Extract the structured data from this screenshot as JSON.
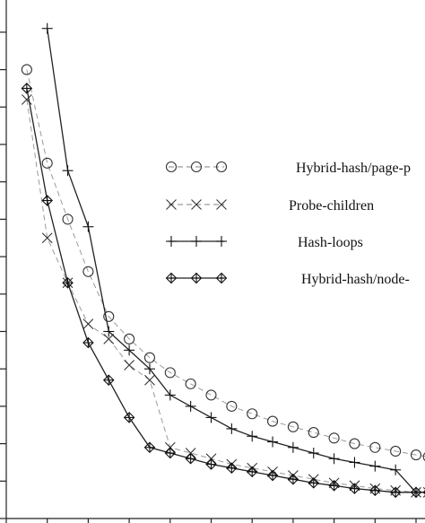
{
  "chart_data": {
    "type": "line",
    "title": "",
    "xlabel": "",
    "ylabel": "",
    "x_ticks": [
      0,
      1,
      2,
      3,
      4,
      5,
      6,
      7,
      8,
      9,
      10
    ],
    "y_ticks": [
      0,
      1,
      2,
      3,
      4,
      5,
      6,
      7,
      8,
      9,
      10,
      11,
      12,
      13
    ],
    "xlim": [
      0,
      10.3
    ],
    "ylim": [
      0,
      14
    ],
    "grid": false,
    "legend_placement": "right",
    "series": [
      {
        "name": "Hybrid-hash/page-p",
        "marker": "circle",
        "line": "dashed",
        "color": "#9a9a9a",
        "x": [
          0.5,
          1,
          1.5,
          2,
          2.5,
          3,
          3.5,
          4,
          4.5,
          5,
          5.5,
          6,
          6.5,
          7,
          7.5,
          8,
          8.5,
          9,
          9.5,
          10,
          10.3
        ],
        "y": [
          12.0,
          9.5,
          8.0,
          6.6,
          5.4,
          4.8,
          4.3,
          3.9,
          3.6,
          3.3,
          3.0,
          2.8,
          2.6,
          2.45,
          2.3,
          2.15,
          2.0,
          1.9,
          1.8,
          1.7,
          1.65
        ]
      },
      {
        "name": "Probe-children",
        "marker": "x",
        "line": "dashed",
        "color": "#9a9a9a",
        "x": [
          0.5,
          1,
          1.5,
          2,
          2.5,
          3,
          3.5,
          4,
          4.5,
          5,
          5.5,
          6,
          6.5,
          7,
          7.5,
          8,
          8.5,
          9,
          9.5,
          10,
          10.3
        ],
        "y": [
          11.2,
          7.5,
          6.3,
          5.2,
          4.8,
          4.1,
          3.7,
          1.9,
          1.75,
          1.6,
          1.45,
          1.35,
          1.25,
          1.15,
          1.05,
          0.95,
          0.88,
          0.8,
          0.75,
          0.7,
          0.7
        ]
      },
      {
        "name": "Hash-loops",
        "marker": "plus",
        "line": "solid",
        "color": "#222222",
        "x": [
          1,
          1.5,
          2,
          2.5,
          3,
          3.5,
          4,
          4.5,
          5,
          5.5,
          6,
          6.5,
          7,
          7.5,
          8,
          8.5,
          9,
          9.5,
          10,
          10.3
        ],
        "y": [
          13.1,
          9.3,
          7.8,
          5.0,
          4.5,
          4.0,
          3.3,
          3.0,
          2.7,
          2.4,
          2.2,
          2.05,
          1.9,
          1.75,
          1.6,
          1.5,
          1.4,
          1.3,
          0.7,
          0.7
        ]
      },
      {
        "name": "Hybrid-hash/node-",
        "marker": "diamond",
        "line": "solid",
        "color": "#222222",
        "x": [
          0.5,
          1,
          1.5,
          2,
          2.5,
          3,
          3.5,
          4,
          4.5,
          5,
          5.5,
          6,
          6.5,
          7,
          7.5,
          8,
          8.5,
          9,
          9.5,
          10,
          10.3
        ],
        "y": [
          11.5,
          8.5,
          6.3,
          4.7,
          3.7,
          2.7,
          1.9,
          1.75,
          1.6,
          1.45,
          1.35,
          1.25,
          1.15,
          1.05,
          0.95,
          0.88,
          0.8,
          0.75,
          0.7,
          0.7,
          0.7
        ]
      }
    ]
  }
}
